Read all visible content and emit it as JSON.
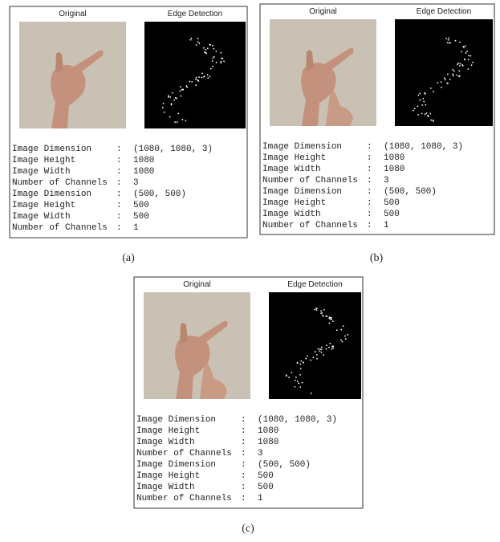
{
  "panels": [
    {
      "original_label": "Original",
      "edge_label": "Edge Detection",
      "separator": ":",
      "rows": [
        {
          "key": "Image Dimension",
          "value": "(1080, 1080, 3)"
        },
        {
          "key": "Image Height",
          "value": "1080"
        },
        {
          "key": "Image Width",
          "value": "1080"
        },
        {
          "key": "Number of Channels",
          "value": "3"
        },
        {
          "key": "Image Dimension",
          "value": "(500, 500)"
        },
        {
          "key": "Image Height",
          "value": "500"
        },
        {
          "key": "Image Width",
          "value": "500"
        },
        {
          "key": "Number of Channels",
          "value": "1"
        }
      ],
      "caption": "(a)"
    },
    {
      "original_label": "Original",
      "edge_label": "Edge Detection",
      "separator": ":",
      "rows": [
        {
          "key": "Image Dimension",
          "value": "(1080, 1080, 3)"
        },
        {
          "key": "Image Height",
          "value": "1080"
        },
        {
          "key": "Image Width",
          "value": "1080"
        },
        {
          "key": "Number of Channels",
          "value": "3"
        },
        {
          "key": "Image Dimension",
          "value": "(500, 500)"
        },
        {
          "key": "Image Height",
          "value": "500"
        },
        {
          "key": "Image Width",
          "value": "500"
        },
        {
          "key": "Number of Channels",
          "value": "1"
        }
      ],
      "caption": "(b)"
    },
    {
      "original_label": "Original",
      "edge_label": "Edge Detection",
      "separator": ":",
      "rows": [
        {
          "key": "Image Dimension",
          "value": "(1080, 1080, 3)"
        },
        {
          "key": "Image Height",
          "value": "1080"
        },
        {
          "key": "Image Width",
          "value": "1080"
        },
        {
          "key": "Number of Channels",
          "value": "3"
        },
        {
          "key": "Image Dimension",
          "value": "(500, 500)"
        },
        {
          "key": "Image Height",
          "value": "500"
        },
        {
          "key": "Image Width",
          "value": "500"
        },
        {
          "key": "Number of Channels",
          "value": "1"
        }
      ],
      "caption": "(c)"
    }
  ]
}
